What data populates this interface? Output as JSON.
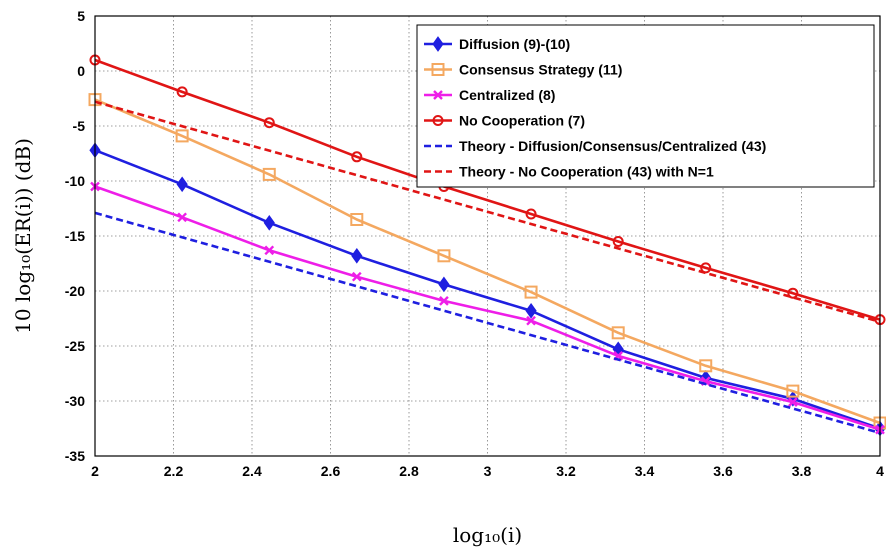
{
  "chart_data": {
    "type": "line",
    "xlabel": "log₁₀(i)",
    "ylabel": "10 log₁₀(ER(i)) (dB)",
    "xlim": [
      2,
      4
    ],
    "ylim": [
      -35,
      5
    ],
    "x_ticks": [
      2,
      2.2,
      2.4,
      2.6,
      2.8,
      3,
      3.2,
      3.4,
      3.6,
      3.8,
      4
    ],
    "x_tick_labels": [
      "2",
      "2.2",
      "2.4",
      "2.6",
      "2.8",
      "3",
      "3.2",
      "3.4",
      "3.6",
      "3.8",
      "4"
    ],
    "y_ticks": [
      5,
      0,
      -5,
      -10,
      -15,
      -20,
      -25,
      -30,
      -35
    ],
    "y_tick_labels": [
      "5",
      "0",
      "-5",
      "-10",
      "-15",
      "-20",
      "-25",
      "-30",
      "-35"
    ],
    "grid": true,
    "legend_position": "top-right",
    "series": [
      {
        "name": "Diffusion (9)-(10)",
        "color": "#1f1fe0",
        "style": "solid",
        "marker": "diamond",
        "x": [
          2,
          2.222,
          2.444,
          2.667,
          2.889,
          3.111,
          3.333,
          3.556,
          3.778,
          4
        ],
        "y": [
          -7.2,
          -10.3,
          -13.8,
          -16.8,
          -19.4,
          -21.8,
          -25.3,
          -27.9,
          -29.8,
          -32.5
        ]
      },
      {
        "name": "Consensus Strategy (11)",
        "color": "#f4a860",
        "style": "solid",
        "marker": "square",
        "x": [
          2,
          2.222,
          2.444,
          2.667,
          2.889,
          3.111,
          3.333,
          3.556,
          3.778,
          4
        ],
        "y": [
          -2.6,
          -5.9,
          -9.4,
          -13.5,
          -16.8,
          -20.1,
          -23.8,
          -26.8,
          -29.1,
          -32.0
        ]
      },
      {
        "name": "Centralized (8)",
        "color": "#ee1ee8",
        "style": "solid",
        "marker": "x",
        "x": [
          2,
          2.222,
          2.444,
          2.667,
          2.889,
          3.111,
          3.333,
          3.556,
          3.778,
          4
        ],
        "y": [
          -10.5,
          -13.3,
          -16.3,
          -18.7,
          -20.9,
          -22.7,
          -25.9,
          -28.2,
          -30.1,
          -32.6
        ]
      },
      {
        "name": "No Cooperation (7)",
        "color": "#e01515",
        "style": "solid",
        "marker": "circle",
        "x": [
          2,
          2.222,
          2.444,
          2.667,
          2.889,
          3.111,
          3.333,
          3.556,
          3.778,
          4
        ],
        "y": [
          1.0,
          -1.9,
          -4.7,
          -7.8,
          -10.5,
          -13.0,
          -15.5,
          -17.9,
          -20.2,
          -22.6
        ]
      },
      {
        "name": "Theory - Diffusion/Consensus/Centralized (43)",
        "color": "#1f1fe0",
        "style": "dashed",
        "marker": "none",
        "x": [
          2,
          4
        ],
        "y": [
          -12.9,
          -32.9
        ]
      },
      {
        "name": "Theory - No Cooperation (43) with N=1",
        "color": "#e01515",
        "style": "dashed",
        "marker": "none",
        "x": [
          2,
          4
        ],
        "y": [
          -2.8,
          -22.8
        ]
      }
    ]
  }
}
